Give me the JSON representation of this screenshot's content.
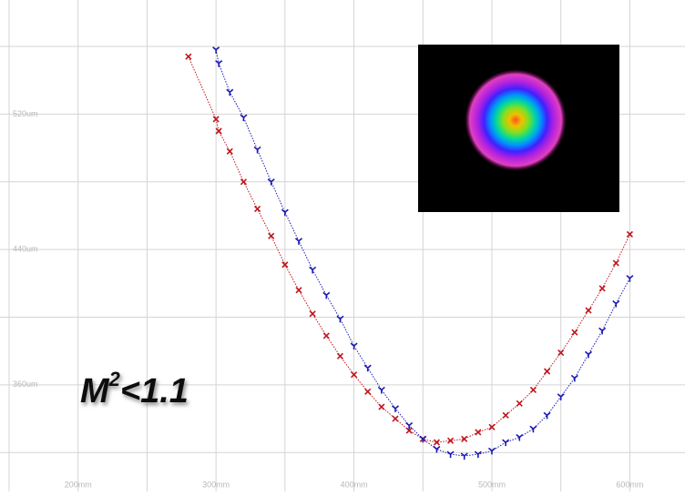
{
  "chart_data": {
    "type": "scatter",
    "annotation": [
      "M",
      "2",
      "<1.1"
    ],
    "xlim": [
      150,
      640
    ],
    "ylim": [
      297,
      581
    ],
    "xticks": [
      {
        "value": 200,
        "label": "200mm"
      },
      {
        "value": 300,
        "label": "300mm"
      },
      {
        "value": 400,
        "label": "400mm"
      },
      {
        "value": 500,
        "label": "500mm"
      },
      {
        "value": 600,
        "label": "600mm"
      }
    ],
    "xminor": [
      150,
      250,
      350,
      450,
      550
    ],
    "yticks": [
      {
        "value": 520,
        "label": "520um"
      },
      {
        "value": 440,
        "label": "440um"
      },
      {
        "value": 360,
        "label": "360um"
      }
    ],
    "yminor": [
      560,
      480,
      400,
      320
    ],
    "grid": true,
    "series": [
      {
        "color": "#c0141c",
        "marker": "x",
        "x": [
          280,
          300,
          302,
          310,
          320,
          330,
          340,
          350,
          360,
          370,
          380,
          390,
          400,
          410,
          420,
          430,
          440,
          450,
          460,
          470,
          480,
          490,
          500,
          510,
          520,
          530,
          540,
          550,
          560,
          570,
          580,
          590,
          600
        ],
        "values": [
          554,
          517,
          510,
          498,
          480,
          464,
          448,
          431,
          416,
          402,
          389,
          377,
          366,
          356,
          347,
          340,
          333,
          328,
          326,
          327,
          328,
          332,
          335,
          342,
          349,
          357,
          368,
          379,
          391,
          404,
          417,
          432,
          449
        ]
      },
      {
        "color": "#1a1ab4",
        "marker": "y",
        "x": [
          300,
          302,
          310,
          320,
          330,
          340,
          350,
          360,
          370,
          380,
          390,
          400,
          410,
          420,
          430,
          440,
          450,
          460,
          470,
          480,
          490,
          500,
          510,
          520,
          530,
          540,
          550,
          560,
          570,
          580,
          590,
          600
        ],
        "values": [
          558,
          550,
          533,
          518,
          499,
          480,
          462,
          445,
          428,
          413,
          399,
          383,
          370,
          357,
          346,
          336,
          328,
          322,
          319,
          318,
          319,
          321,
          326,
          329,
          334,
          342,
          353,
          364,
          378,
          392,
          408,
          423
        ]
      }
    ]
  }
}
